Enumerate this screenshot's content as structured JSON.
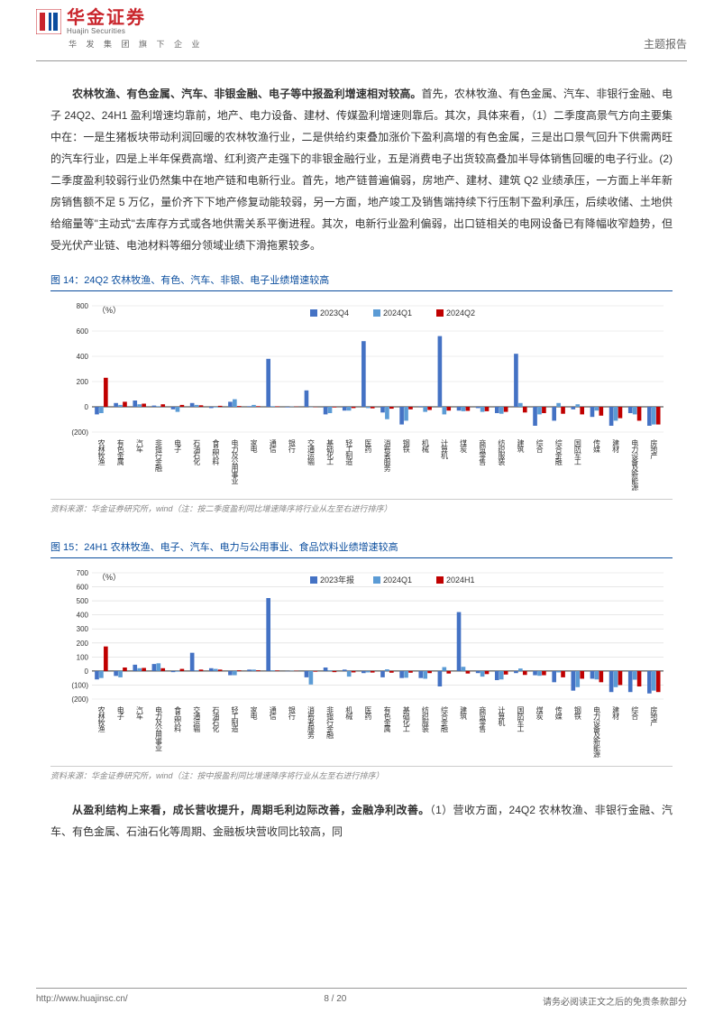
{
  "header": {
    "logo_cn": "华金证券",
    "logo_en": "Huajin Securities",
    "logo_sub": "华 发 集 团 旗 下 企 业",
    "report_type": "主题报告"
  },
  "paragraph1": {
    "bold": "农林牧渔、有色金属、汽车、非银金融、电子等中报盈利增速相对较高。",
    "rest": "首先，农林牧渔、有色金属、汽车、非银行金融、电子 24Q2、24H1 盈利增速均靠前，地产、电力设备、建材、传媒盈利增速则靠后。其次，具体来看，（1）二季度高景气方向主要集中在：一是生猪板块带动利润回暖的农林牧渔行业，二是供给约束叠加涨价下盈利高增的有色金属，三是出口景气回升下供需两旺的汽车行业，四是上半年保费高增、红利资产走强下的非银金融行业，五是消费电子出货较高叠加半导体销售回暖的电子行业。(2)二季度盈利较弱行业仍然集中在地产链和电新行业。首先，地产链普遍偏弱，房地产、建材、建筑 Q2 业绩承压，一方面上半年新房销售额不足 5 万亿，量价齐下下地产修复动能较弱，另一方面，地产竣工及销售端持续下行压制下盈利承压，后续收储、土地供给缩量等\"主动式\"去库存方式或各地供需关系平衡进程。其次，电新行业盈利偏弱，出口链相关的电网设备已有降幅收窄趋势，但受光伏产业链、电池材料等细分领域业绩下滑拖累较多。"
  },
  "figure14": {
    "title": "图 14：24Q2 农林牧渔、有色、汽车、非银、电子业绩增速较高",
    "source": "资料来源：华金证券研究所，wind（注：按二季度盈利同比增速降序将行业从左至右进行排序）",
    "ylabel": "（%）",
    "ylim": [
      -200,
      800
    ],
    "ytick_step": 200,
    "grid_color": "#d9d9d9",
    "axis_color": "#333333",
    "label_fontsize": 9,
    "tick_fontsize": 8,
    "bar_group_width": 0.7,
    "legend": [
      {
        "label": "2023Q4",
        "color": "#4472c4"
      },
      {
        "label": "2024Q1",
        "color": "#5b9bd5"
      },
      {
        "label": "2024Q2",
        "color": "#c00000"
      }
    ],
    "categories": [
      "农林牧渔",
      "有色金属",
      "汽车",
      "非银行金融",
      "电子",
      "石油石化",
      "食品饮料",
      "电力及公用事业",
      "家电",
      "通信",
      "银行",
      "交通运输",
      "基础化工",
      "轻工制造",
      "医药",
      "消费者服务",
      "钢铁",
      "机械",
      "计算机",
      "煤炭",
      "商贸零售",
      "纺织服装",
      "建筑",
      "综合",
      "综合金融",
      "国防军工",
      "传媒",
      "建材",
      "电力设备及新能源",
      "房地产"
    ],
    "series": {
      "2023Q4": [
        -60,
        30,
        50,
        10,
        -20,
        30,
        -10,
        40,
        5,
        380,
        -5,
        130,
        -60,
        -30,
        520,
        -45,
        -140,
        5,
        560,
        -30,
        -10,
        -50,
        420,
        -150,
        -110,
        -20,
        -80,
        -150,
        -50,
        -150
      ],
      "2024Q1": [
        -50,
        15,
        20,
        5,
        -40,
        15,
        -5,
        60,
        15,
        5,
        2,
        0,
        -50,
        -30,
        -10,
        -98,
        -110,
        -40,
        -60,
        -35,
        -40,
        -55,
        30,
        -60,
        30,
        20,
        -30,
        -110,
        -60,
        -140
      ],
      "2024Q2": [
        230,
        40,
        25,
        20,
        15,
        12,
        8,
        6,
        5,
        4,
        2,
        -2,
        -5,
        -10,
        -12,
        -15,
        -20,
        -25,
        -30,
        -32,
        -35,
        -40,
        -45,
        -50,
        -55,
        -60,
        -70,
        -90,
        -110,
        -140
      ]
    }
  },
  "figure15": {
    "title": "图 15：24H1 农林牧渔、电子、汽车、电力与公用事业、食品饮料业绩增速较高",
    "source": "资料来源：华金证券研究所，wind（注：按中报盈利同比增速降序将行业从左至右进行排序）",
    "ylabel": "（%）",
    "ylim": [
      -200,
      700
    ],
    "ytick_step": 100,
    "grid_color": "#d9d9d9",
    "axis_color": "#333333",
    "label_fontsize": 9,
    "tick_fontsize": 8,
    "bar_group_width": 0.7,
    "legend": [
      {
        "label": "2023年报",
        "color": "#4472c4"
      },
      {
        "label": "2024Q1",
        "color": "#5b9bd5"
      },
      {
        "label": "2024H1",
        "color": "#c00000"
      }
    ],
    "categories": [
      "农林牧渔",
      "电子",
      "汽车",
      "电力及公用事业",
      "食品饮料",
      "交通运输",
      "石油石化",
      "轻工制造",
      "家电",
      "通信",
      "银行",
      "消费者服务",
      "非银行金融",
      "机械",
      "医药",
      "有色金属",
      "基础化工",
      "纺织服装",
      "综合金融",
      "建筑",
      "商贸零售",
      "计算机",
      "国防军工",
      "煤炭",
      "传媒",
      "钢铁",
      "电力设备及新能源",
      "建材",
      "综合",
      "房地产"
    ],
    "series": {
      "2023年报": [
        -60,
        -35,
        45,
        50,
        -8,
        130,
        20,
        -30,
        10,
        520,
        -2,
        -45,
        25,
        10,
        -15,
        -45,
        -50,
        -50,
        -110,
        420,
        -15,
        -65,
        -15,
        -30,
        -80,
        -140,
        -55,
        -150,
        -150,
        -160
      ],
      "2024Q1": [
        -50,
        -45,
        20,
        55,
        -5,
        5,
        15,
        -30,
        10,
        5,
        2,
        -96,
        5,
        -40,
        -10,
        12,
        -48,
        -55,
        28,
        30,
        -40,
        -60,
        18,
        -34,
        -10,
        -115,
        -60,
        -115,
        -62,
        -140
      ],
      "2024H1": [
        175,
        25,
        22,
        20,
        15,
        10,
        10,
        5,
        5,
        4,
        2,
        -5,
        -8,
        -10,
        -11,
        -12,
        -12,
        -15,
        -18,
        -18,
        -22,
        -25,
        -28,
        -30,
        -45,
        -55,
        -80,
        -100,
        -110,
        -150
      ]
    }
  },
  "paragraph2": {
    "bold": "从盈利结构上来看，成长营收提升，周期毛利边际改善，金融净利改善。",
    "rest": "（1）营收方面，24Q2 农林牧渔、非银行金融、汽车、有色金属、石油石化等周期、金融板块营收同比较高，同"
  },
  "footer": {
    "url": "http://www.huajinsc.cn/",
    "page": "8 / 20",
    "disclaimer": "请务必阅读正文之后的免责条款部分"
  },
  "colors": {
    "brand_red": "#c9252c",
    "brand_blue": "#0a4d9e"
  }
}
